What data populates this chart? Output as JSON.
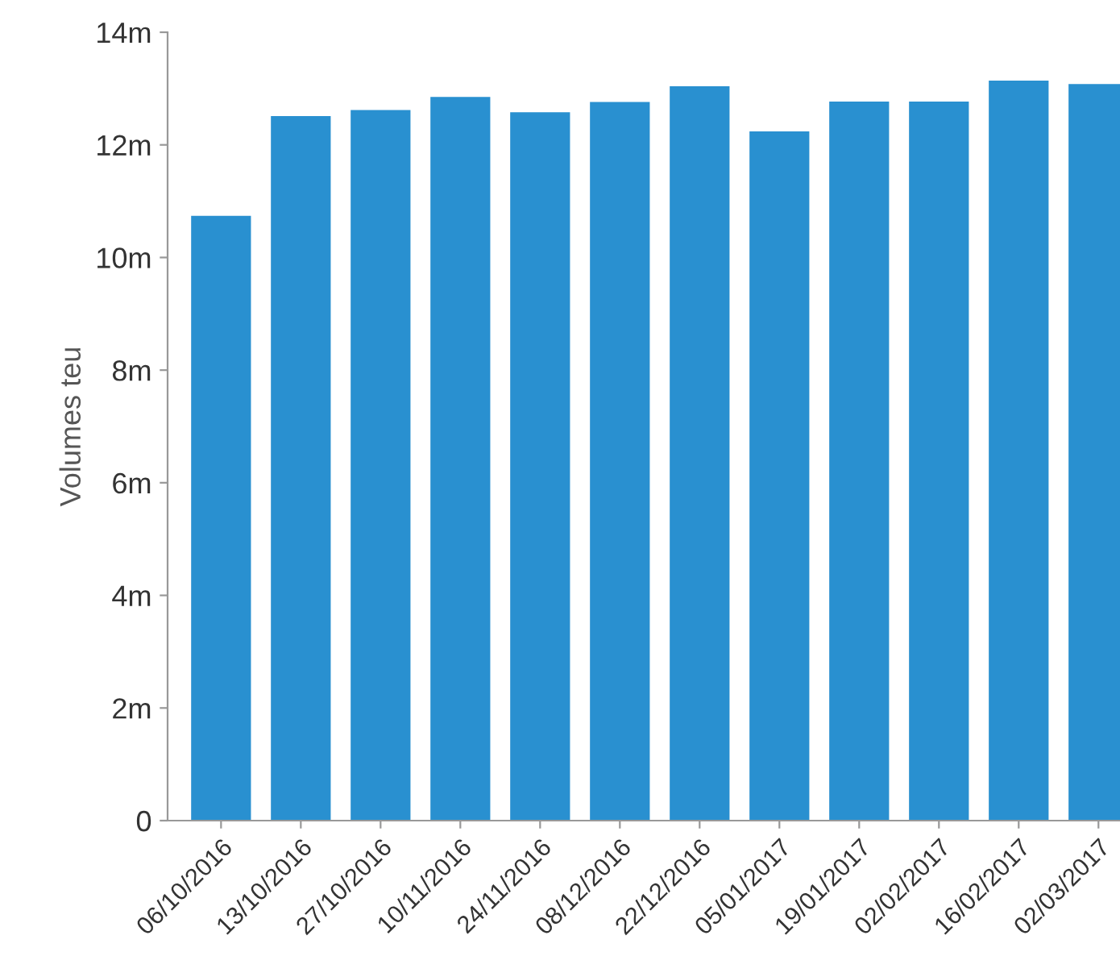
{
  "chart_data": {
    "type": "bar",
    "ylabel": "Volumes teu",
    "categories": [
      "06/10/2016",
      "13/10/2016",
      "27/10/2016",
      "10/11/2016",
      "24/11/2016",
      "08/12/2016",
      "22/12/2016",
      "05/01/2017",
      "19/01/2017",
      "02/02/2017",
      "16/02/2017",
      "02/03/2017"
    ],
    "values": [
      10.74,
      12.51,
      12.62,
      12.85,
      12.58,
      12.76,
      13.04,
      12.24,
      12.77,
      12.77,
      13.14,
      13.08
    ],
    "color": "#2990d0",
    "ylim": [
      0,
      14
    ],
    "yticks": [
      {
        "value": 0,
        "label": "0"
      },
      {
        "value": 2,
        "label": "2m"
      },
      {
        "value": 4,
        "label": "4m"
      },
      {
        "value": 6,
        "label": "6m"
      },
      {
        "value": 8,
        "label": "8m"
      },
      {
        "value": 10,
        "label": "10m"
      },
      {
        "value": 12,
        "label": "12m"
      },
      {
        "value": 14,
        "label": "14m"
      }
    ],
    "grid": false,
    "legend": false
  }
}
